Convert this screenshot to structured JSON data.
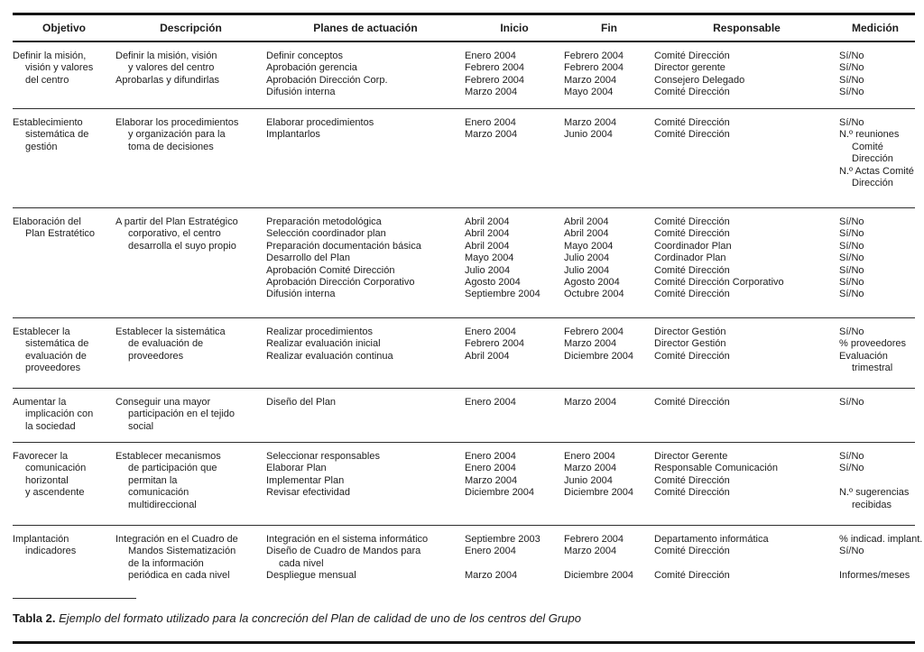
{
  "table": {
    "columns": [
      "Objetivo",
      "Descripción",
      "Planes de actuación",
      "Inicio",
      "Fin",
      "Responsable",
      "Medición"
    ],
    "rows": [
      {
        "cells": [
          [
            "Definir la misión,",
            {
              "text": "visión y valores",
              "indent": true
            },
            {
              "text": "del centro",
              "indent": true
            }
          ],
          [
            "Definir la misión, visión",
            {
              "text": "y valores del centro",
              "indent": true
            },
            "Aprobarlas y difundirlas"
          ],
          [
            "Definir conceptos",
            "Aprobación gerencia",
            "Aprobación Dirección Corp.",
            "Difusión interna"
          ],
          [
            "Enero 2004",
            "Febrero 2004",
            "Febrero 2004",
            "Marzo 2004"
          ],
          [
            "Febrero 2004",
            "Febrero 2004",
            "Marzo 2004",
            "Mayo 2004"
          ],
          [
            "Comité Dirección",
            "Director gerente",
            "Consejero Delegado",
            "Comité Dirección"
          ],
          [
            "Sí/No",
            "Sí/No",
            "Sí/No",
            "Sí/No"
          ]
        ]
      },
      {
        "cells": [
          [
            "Establecimiento",
            {
              "text": "sistemática de",
              "indent": true
            },
            {
              "text": "gestión",
              "indent": true
            }
          ],
          [
            "Elaborar los procedimientos",
            {
              "text": "y organización para la",
              "indent": true
            },
            {
              "text": "toma de decisiones",
              "indent": true
            }
          ],
          [
            "Elaborar procedimientos",
            "Implantarlos"
          ],
          [
            "Enero 2004",
            "Marzo 2004"
          ],
          [
            "Marzo 2004",
            "Junio 2004"
          ],
          [
            "Comité Dirección",
            "Comité Dirección"
          ],
          [
            "Sí/No",
            "N.º reuniones",
            {
              "text": "Comité",
              "indent": true
            },
            {
              "text": "Dirección",
              "indent": true
            },
            "N.º Actas Comité",
            {
              "text": "Dirección",
              "indent": true
            }
          ]
        ]
      },
      {
        "cells": [
          [
            "Elaboración del",
            {
              "text": "Plan Estratético",
              "indent": true
            }
          ],
          [
            "A partir del Plan Estratégico",
            {
              "text": "corporativo, el centro",
              "indent": true
            },
            {
              "text": "desarrolla el suyo propio",
              "indent": true
            }
          ],
          [
            "Preparación metodológica",
            "Selección coordinador plan",
            "Preparación documentación básica",
            "Desarrollo del Plan",
            "Aprobación Comité Dirección",
            "Aprobación Dirección Corporativo",
            "Difusión interna"
          ],
          [
            "Abril 2004",
            "Abril 2004",
            "Abril 2004",
            "Mayo 2004",
            "Julio 2004",
            "Agosto 2004",
            "Septiembre 2004"
          ],
          [
            "Abril 2004",
            "Abril 2004",
            "Mayo 2004",
            "Julio 2004",
            "Julio 2004",
            "Agosto 2004",
            "Octubre 2004"
          ],
          [
            "Comité Dirección",
            "Comité Dirección",
            "Coordinador Plan",
            "Cordinador Plan",
            "Comité Dirección",
            "Comité Dirección Corporativo",
            "Comité Dirección"
          ],
          [
            "Sí/No",
            "Sí/No",
            "Sí/No",
            "Sí/No",
            "Sí/No",
            "Sí/No",
            "Sí/No"
          ]
        ]
      },
      {
        "cells": [
          [
            "Establecer la",
            {
              "text": "sistemática de",
              "indent": true
            },
            {
              "text": "evaluación de",
              "indent": true
            },
            {
              "text": "proveedores",
              "indent": true
            }
          ],
          [
            "Establecer la sistemática",
            {
              "text": "de evaluación de",
              "indent": true
            },
            {
              "text": "proveedores",
              "indent": true
            }
          ],
          [
            "Realizar procedimientos",
            "Realizar evaluación inicial",
            "Realizar evaluación continua"
          ],
          [
            "Enero 2004",
            "Febrero 2004",
            "Abril 2004"
          ],
          [
            "Febrero 2004",
            "Marzo 2004",
            "Diciembre 2004"
          ],
          [
            "Director Gestión",
            "Director Gestión",
            "Comité Dirección"
          ],
          [
            "Sí/No",
            "% proveedores",
            "Evaluación",
            {
              "text": "trimestral",
              "indent": true
            }
          ]
        ]
      },
      {
        "cells": [
          [
            "Aumentar la",
            {
              "text": "implicación con",
              "indent": true
            },
            {
              "text": "la sociedad",
              "indent": true
            }
          ],
          [
            "Conseguir una mayor",
            {
              "text": "participación en el tejido",
              "indent": true
            },
            {
              "text": "social",
              "indent": true
            }
          ],
          [
            "Diseño del Plan"
          ],
          [
            "Enero 2004"
          ],
          [
            "Marzo 2004"
          ],
          [
            "Comité Dirección"
          ],
          [
            "Sí/No"
          ]
        ]
      },
      {
        "cells": [
          [
            "Favorecer la",
            {
              "text": "comunicación",
              "indent": true
            },
            {
              "text": "horizontal",
              "indent": true
            },
            {
              "text": "y ascendente",
              "indent": true
            }
          ],
          [
            "Establecer mecanismos",
            {
              "text": "de participación que",
              "indent": true
            },
            {
              "text": "permitan la",
              "indent": true
            },
            {
              "text": "comunicación",
              "indent": true
            },
            {
              "text": "multidireccional",
              "indent": true
            }
          ],
          [
            "Seleccionar responsables",
            "Elaborar Plan",
            "Implementar Plan",
            "Revisar efectividad"
          ],
          [
            "Enero 2004",
            "Enero 2004",
            "Marzo 2004",
            "Diciembre 2004"
          ],
          [
            "Enero 2004",
            "Marzo 2004",
            "Junio 2004",
            "Diciembre 2004"
          ],
          [
            "Director Gerente",
            "Responsable Comunicación",
            "Comité Dirección",
            "Comité Dirección"
          ],
          [
            "Sí/No",
            "Sí/No",
            "",
            "N.º sugerencias",
            {
              "text": "recibidas",
              "indent": true
            }
          ]
        ]
      },
      {
        "cells": [
          [
            "Implantación",
            {
              "text": "indicadores",
              "indent": true
            }
          ],
          [
            "Integración en el Cuadro de",
            {
              "text": "Mandos Sistematización",
              "indent": true
            },
            {
              "text": "de la información",
              "indent": true
            },
            {
              "text": "periódica en cada nivel",
              "indent": true
            }
          ],
          [
            "Integración en el sistema informático",
            "Diseño de Cuadro de Mandos para",
            {
              "text": "cada nivel",
              "indent": true
            },
            "Despliegue mensual"
          ],
          [
            "Septiembre 2003",
            "Enero 2004",
            "",
            "Marzo 2004"
          ],
          [
            "Febrero 2004",
            "Marzo 2004",
            "",
            "Diciembre 2004"
          ],
          [
            "Departamento informática",
            "Comité Dirección",
            "",
            "Comité Dirección"
          ],
          [
            "% indicad. implant.",
            "Sí/No",
            "",
            "Informes/meses"
          ]
        ]
      }
    ]
  },
  "caption": {
    "label": "Tabla 2.",
    "text": "Ejemplo del formato utilizado para la concreción del Plan de calidad de uno de los centros del Grupo"
  }
}
